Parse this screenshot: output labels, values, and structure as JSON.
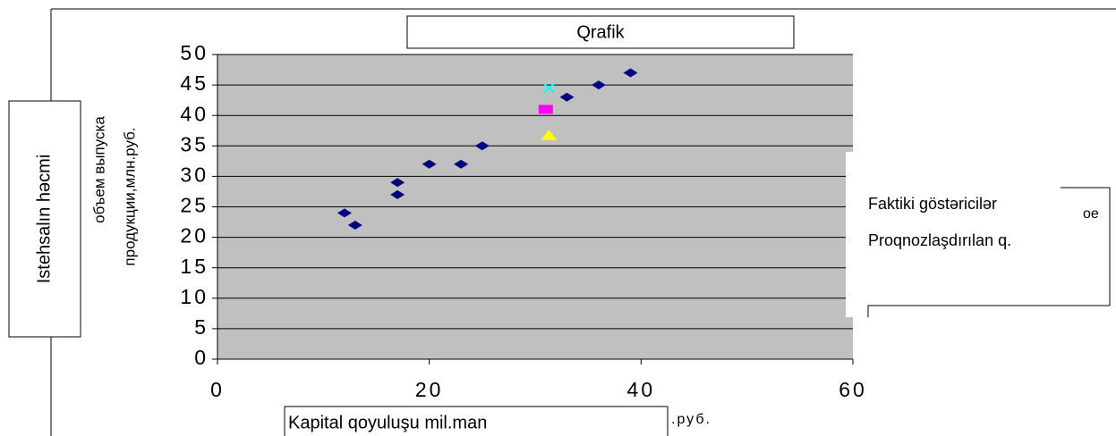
{
  "chart_data": {
    "type": "scatter",
    "title": "Qrafik",
    "y_label": "Istehsalın həcmi",
    "y_label_ru": [
      "объем выпуска",
      "продукции,млн.руб."
    ],
    "x_label": "Kapital qoyuluşu mil.man",
    "x_label_suffix": ".руб.",
    "legend_fragment": "ое",
    "series": [
      {
        "name": "Faktiki göstəricilər",
        "color": "#000080",
        "marker": "diamond",
        "x": [
          12,
          13,
          17,
          17,
          20,
          23,
          25,
          33,
          36,
          39
        ],
        "values": [
          24,
          22,
          29,
          27,
          32,
          32,
          35,
          43,
          45,
          47
        ]
      },
      {
        "name": "Proqnozlaşdırılan q.",
        "colors": [
          "#00ffff",
          "#ff00ff",
          "#ffff00"
        ],
        "markers": [
          "x",
          "square",
          "triangle"
        ],
        "x": [
          31.3,
          31,
          31.3
        ],
        "values": [
          44.5,
          41,
          36.8
        ]
      }
    ],
    "xlim": [
      0,
      60
    ],
    "xticks": [
      0,
      20,
      40,
      60
    ],
    "ylim": [
      0,
      50
    ],
    "yticks": [
      0,
      5,
      10,
      15,
      20,
      25,
      30,
      35,
      40,
      45,
      50
    ],
    "grid": true,
    "plot_background": "#c0c0c0"
  }
}
